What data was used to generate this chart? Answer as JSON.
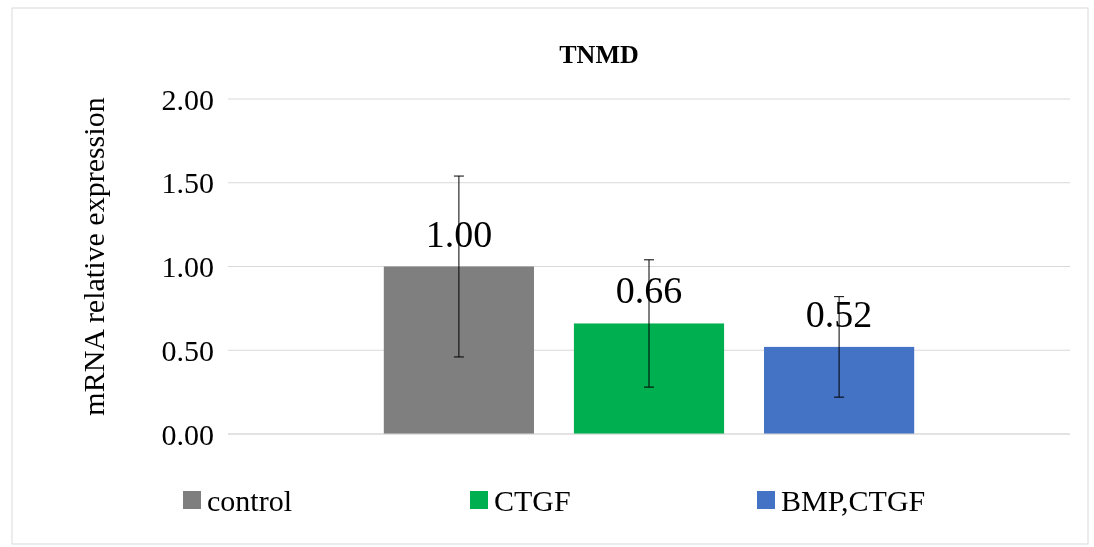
{
  "chart_data": {
    "type": "bar",
    "title": "TNMD",
    "ylabel": "mRNA relative expression",
    "categories": [
      null
    ],
    "series": [
      {
        "name": "control",
        "color": "#7f7f7f",
        "values": [
          1.0
        ],
        "errors": [
          0.54
        ],
        "value_labels": [
          "1.00"
        ]
      },
      {
        "name": "CTGF",
        "color": "#00b050",
        "values": [
          0.66
        ],
        "errors": [
          0.38
        ],
        "value_labels": [
          "0.66"
        ]
      },
      {
        "name": "BMP,CTGF",
        "color": "#4472c4",
        "values": [
          0.52
        ],
        "errors": [
          0.3
        ],
        "value_labels": [
          "0.52"
        ]
      }
    ],
    "ylim": [
      0,
      2
    ],
    "yticks": [
      {
        "value": 0,
        "label": "0.00"
      },
      {
        "value": 0.5,
        "label": "0.50"
      },
      {
        "value": 1,
        "label": "1.00"
      },
      {
        "value": 1.5,
        "label": "1.50"
      },
      {
        "value": 2,
        "label": "2.00"
      }
    ],
    "grid": "y",
    "legend": "bottom"
  }
}
